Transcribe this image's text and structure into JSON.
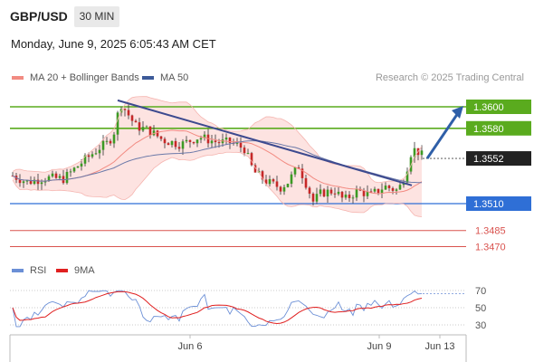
{
  "header": {
    "pair": "GBP/USD",
    "timeframe": "30 MIN",
    "datetime": "Monday, June 9, 2025 6:05:43 AM CET",
    "credit": "Research © 2025 Trading Central"
  },
  "legend": {
    "price": [
      {
        "name": "MA 20 + Bollinger Bands",
        "color": "#f28b82"
      },
      {
        "name": "MA 50",
        "color": "#3d5a99"
      }
    ],
    "rsi": [
      {
        "name": "RSI",
        "color": "#6b8fd6"
      },
      {
        "name": "9MA",
        "color": "#e02020"
      }
    ]
  },
  "chart_data": {
    "type": "candlestick",
    "price_levels": [
      {
        "label": "1.3600",
        "value": 1.36,
        "kind": "resistance",
        "color": "#5aab1e"
      },
      {
        "label": "1.3580",
        "value": 1.358,
        "kind": "resistance",
        "color": "#5aab1e"
      },
      {
        "label": "1.3552",
        "value": 1.3552,
        "kind": "last-price",
        "color": "#222222"
      },
      {
        "label": "1.3510",
        "value": 1.351,
        "kind": "pivot",
        "color": "#2f6fd6"
      },
      {
        "label": "1.3485",
        "value": 1.3485,
        "kind": "support",
        "color": "#d9534f"
      },
      {
        "label": "1.3470",
        "value": 1.347,
        "kind": "support",
        "color": "#d9534f"
      }
    ],
    "x_axis_labels": [
      "Jun 6",
      "Jun 9",
      "Jun 13"
    ],
    "rsi_ticks": [
      70,
      50,
      30
    ],
    "rsi_range": [
      20,
      80
    ],
    "price_range": [
      1.3455,
      1.3625
    ],
    "indicators": [
      "MA 20 + Bollinger Bands",
      "MA 50",
      "RSI",
      "9MA"
    ],
    "forecast_target": 1.36
  }
}
